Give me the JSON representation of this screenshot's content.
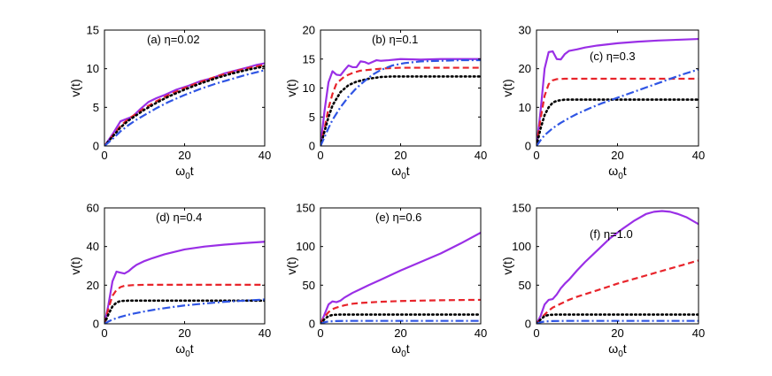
{
  "chart_data": [
    {
      "type": "line",
      "annotation": "(a) η=0.02",
      "xlabel": "ω0t",
      "ylabel": "v(t)",
      "xlim": [
        0,
        40
      ],
      "ylim": [
        0,
        15
      ],
      "xticks": [
        "0",
        "20",
        "40"
      ],
      "yticks": [
        "0",
        "5",
        "10",
        "15"
      ],
      "series": [
        {
          "style": "solid",
          "color": "#9a2fe6",
          "x": [
            0,
            2,
            4,
            5,
            7,
            9,
            11,
            13,
            15,
            18,
            21,
            24,
            27,
            30,
            33,
            36,
            38,
            40
          ],
          "y": [
            0,
            1.5,
            3.2,
            3.4,
            3.8,
            4.8,
            5.7,
            6.2,
            6.6,
            7.3,
            7.8,
            8.4,
            8.8,
            9.4,
            9.8,
            10.2,
            10.5,
            10.7
          ]
        },
        {
          "style": "dashed",
          "color": "#e8242b",
          "x": [
            0,
            2,
            4,
            6,
            8,
            10,
            13,
            16,
            20,
            24,
            28,
            32,
            36,
            40
          ],
          "y": [
            0,
            1.3,
            2.6,
            3.5,
            4.2,
            4.9,
            5.8,
            6.6,
            7.5,
            8.3,
            9,
            9.6,
            10.1,
            10.5
          ]
        },
        {
          "style": "dotted",
          "color": "#000000",
          "x": [
            0,
            2,
            4,
            6,
            8,
            10,
            13,
            16,
            20,
            24,
            28,
            32,
            36,
            40
          ],
          "y": [
            0,
            1.2,
            2.4,
            3.3,
            4,
            4.7,
            5.6,
            6.4,
            7.3,
            8.1,
            8.8,
            9.4,
            9.9,
            10.3
          ]
        },
        {
          "style": "dashdot",
          "color": "#2f55e4",
          "x": [
            0,
            2,
            4,
            6,
            8,
            10,
            13,
            16,
            20,
            24,
            28,
            32,
            36,
            40
          ],
          "y": [
            0,
            0.9,
            1.9,
            2.7,
            3.4,
            4,
            4.9,
            5.7,
            6.6,
            7.4,
            8.1,
            8.7,
            9.3,
            9.8
          ]
        }
      ]
    },
    {
      "type": "line",
      "annotation": "(b) η=0.1",
      "xlabel": "ω0t",
      "ylabel": "v(t)",
      "xlim": [
        0,
        40
      ],
      "ylim": [
        0,
        20
      ],
      "xticks": [
        "0",
        "20",
        "40"
      ],
      "yticks": [
        "0",
        "5",
        "10",
        "15",
        "20"
      ],
      "series": [
        {
          "style": "solid",
          "color": "#9a2fe6",
          "x": [
            0,
            1,
            2,
            3,
            4,
            5,
            6,
            7,
            8,
            9,
            10,
            11,
            12,
            13,
            14,
            15,
            17,
            20,
            25,
            30,
            35,
            40
          ],
          "y": [
            0,
            6,
            11,
            12.9,
            12.3,
            12.2,
            13.1,
            13.9,
            13.6,
            13.6,
            14.6,
            14.5,
            14.2,
            14.5,
            14.8,
            14.7,
            14.8,
            15,
            14.9,
            15,
            15,
            15
          ]
        },
        {
          "style": "dashed",
          "color": "#e8242b",
          "x": [
            0,
            1,
            2,
            3,
            4,
            6,
            8,
            10,
            13,
            16,
            20,
            25,
            30,
            35,
            40
          ],
          "y": [
            0,
            3,
            6.5,
            9,
            10.8,
            12,
            12.6,
            13,
            13.2,
            13.4,
            13.5,
            13.5,
            13.5,
            13.5,
            13.5
          ]
        },
        {
          "style": "dotted",
          "color": "#000000",
          "x": [
            0,
            1,
            2,
            3,
            5,
            7,
            9,
            12,
            15,
            18,
            22,
            26,
            30,
            35,
            40
          ],
          "y": [
            0,
            2.5,
            5,
            7,
            9.3,
            10.5,
            11.1,
            11.6,
            11.9,
            12,
            12,
            12,
            12,
            12,
            12
          ]
        },
        {
          "style": "dashdot",
          "color": "#2f55e4",
          "x": [
            0,
            1,
            2,
            3,
            5,
            7,
            9,
            11,
            13,
            15,
            18,
            21,
            25,
            30,
            35,
            40
          ],
          "y": [
            0,
            1.5,
            3.1,
            4.5,
            6.7,
            8.5,
            10,
            11.2,
            12.3,
            13.1,
            13.9,
            14.3,
            14.6,
            14.7,
            14.8,
            14.8
          ]
        }
      ]
    },
    {
      "type": "line",
      "annotation": "(c) η=0.3",
      "xlabel": "ω0t",
      "ylabel": "v(t)",
      "xlim": [
        0,
        40
      ],
      "ylim": [
        0,
        30
      ],
      "xticks": [
        "0",
        "20",
        "40"
      ],
      "yticks": [
        "0",
        "10",
        "20",
        "30"
      ],
      "series": [
        {
          "style": "solid",
          "color": "#9a2fe6",
          "x": [
            0,
            1,
            2,
            3,
            4,
            5,
            6,
            7,
            8,
            9,
            10,
            12,
            15,
            20,
            25,
            30,
            35,
            40
          ],
          "y": [
            0,
            9,
            20,
            24.3,
            24.5,
            22.5,
            22.4,
            23.8,
            24.6,
            24.8,
            25,
            25.5,
            26,
            26.6,
            27,
            27.3,
            27.5,
            27.7
          ]
        },
        {
          "style": "dashed",
          "color": "#e8242b",
          "x": [
            0,
            1,
            2,
            3,
            4,
            5,
            7,
            10,
            20,
            30,
            40
          ],
          "y": [
            0,
            7,
            13,
            16,
            17,
            17.3,
            17.4,
            17.4,
            17.4,
            17.4,
            17.4
          ]
        },
        {
          "style": "dotted",
          "color": "#000000",
          "x": [
            0,
            1,
            2,
            3,
            4,
            5,
            7,
            10,
            20,
            30,
            40
          ],
          "y": [
            0,
            4.5,
            8,
            10,
            11.2,
            11.7,
            12,
            12,
            12,
            12,
            12
          ]
        },
        {
          "style": "dashdot",
          "color": "#2f55e4",
          "x": [
            0,
            1,
            2,
            4,
            6,
            8,
            10,
            13,
            16,
            20,
            24,
            28,
            32,
            36,
            40
          ],
          "y": [
            0,
            1.5,
            2.8,
            4.6,
            6,
            7.2,
            8.3,
            9.7,
            11,
            12.5,
            14,
            15.5,
            17,
            18.5,
            19.8
          ]
        }
      ]
    },
    {
      "type": "line",
      "annotation": "(d) η=0.4",
      "xlabel": "ω0t",
      "ylabel": "v(t)",
      "xlim": [
        0,
        40
      ],
      "ylim": [
        0,
        60
      ],
      "xticks": [
        "0",
        "20",
        "40"
      ],
      "yticks": [
        "0",
        "20",
        "40",
        "60"
      ],
      "series": [
        {
          "style": "solid",
          "color": "#9a2fe6",
          "x": [
            0,
            1,
            2,
            3,
            4,
            5,
            6,
            7,
            8,
            10,
            12,
            15,
            20,
            25,
            30,
            35,
            40
          ],
          "y": [
            0,
            10,
            22,
            27,
            26.5,
            26,
            27.2,
            29,
            30.5,
            32.5,
            34,
            36,
            38.5,
            40,
            41,
            41.8,
            42.5
          ]
        },
        {
          "style": "dashed",
          "color": "#e8242b",
          "x": [
            0,
            1,
            2,
            3,
            4,
            5,
            7,
            10,
            20,
            30,
            40
          ],
          "y": [
            0,
            8,
            14.5,
            17.5,
            19,
            19.7,
            20,
            20.2,
            20.2,
            20.2,
            20.2
          ]
        },
        {
          "style": "dotted",
          "color": "#000000",
          "x": [
            0,
            1,
            2,
            3,
            4,
            6,
            10,
            20,
            30,
            40
          ],
          "y": [
            0,
            5,
            9,
            11,
            11.8,
            12,
            12,
            12,
            12,
            12
          ]
        },
        {
          "style": "dashdot",
          "color": "#2f55e4",
          "x": [
            0,
            1,
            2,
            4,
            6,
            8,
            10,
            13,
            16,
            20,
            25,
            30,
            35,
            40
          ],
          "y": [
            0,
            1.2,
            2.2,
            3.6,
            4.7,
            5.6,
            6.4,
            7.5,
            8.4,
            9.5,
            10.5,
            11.4,
            12,
            12.6
          ]
        }
      ]
    },
    {
      "type": "line",
      "annotation": "(e) η=0.6",
      "xlabel": "ω0t",
      "ylabel": "v(t)",
      "xlim": [
        0,
        40
      ],
      "ylim": [
        0,
        150
      ],
      "xticks": [
        "0",
        "20",
        "40"
      ],
      "yticks": [
        "0",
        "50",
        "100",
        "150"
      ],
      "series": [
        {
          "style": "solid",
          "color": "#9a2fe6",
          "x": [
            0,
            1,
            2,
            3,
            4,
            5,
            6,
            7,
            8,
            10,
            12,
            15,
            20,
            25,
            30,
            35,
            40
          ],
          "y": [
            0,
            12,
            25,
            29,
            28,
            30,
            34,
            37,
            40,
            45,
            50,
            57,
            69,
            80,
            91,
            104,
            118
          ]
        },
        {
          "style": "dashed",
          "color": "#e8242b",
          "x": [
            0,
            1,
            2,
            3,
            4,
            6,
            8,
            10,
            15,
            20,
            25,
            30,
            35,
            40
          ],
          "y": [
            0,
            9,
            15,
            19,
            21,
            24,
            26,
            27,
            28.5,
            29.5,
            30,
            30.5,
            30.8,
            31
          ]
        },
        {
          "style": "dotted",
          "color": "#000000",
          "x": [
            0,
            1,
            2,
            3,
            5,
            10,
            20,
            30,
            40
          ],
          "y": [
            0,
            6,
            10,
            11.5,
            12,
            12,
            12,
            12,
            12
          ]
        },
        {
          "style": "dashdot",
          "color": "#2f55e4",
          "x": [
            0,
            1,
            2,
            4,
            8,
            12,
            20,
            30,
            40
          ],
          "y": [
            0,
            2,
            3,
            3.6,
            3.8,
            3.8,
            3.8,
            3.8,
            3.8
          ]
        }
      ]
    },
    {
      "type": "line",
      "annotation": "(f) η=1.0",
      "xlabel": "ω0t",
      "ylabel": "v(t)",
      "xlim": [
        0,
        40
      ],
      "ylim": [
        0,
        150
      ],
      "xticks": [
        "0",
        "20",
        "40"
      ],
      "yticks": [
        "0",
        "50",
        "100",
        "150"
      ],
      "series": [
        {
          "style": "solid",
          "color": "#9a2fe6",
          "x": [
            0,
            1,
            2,
            3,
            4,
            5,
            6,
            7,
            8,
            10,
            12,
            15,
            18,
            21,
            24,
            27,
            29,
            31,
            33,
            35,
            37,
            40
          ],
          "y": [
            0,
            10,
            25,
            31,
            32,
            38,
            46,
            52,
            57,
            69,
            80,
            95,
            110,
            122,
            133,
            142,
            145,
            146,
            145,
            142,
            138,
            129
          ]
        },
        {
          "style": "dashed",
          "color": "#e8242b",
          "x": [
            0,
            1,
            2,
            3,
            4,
            6,
            8,
            10,
            13,
            16,
            20,
            24,
            28,
            32,
            36,
            40
          ],
          "y": [
            0,
            6,
            12,
            17,
            21,
            26,
            31,
            35,
            40,
            45,
            52,
            58,
            64,
            70,
            76,
            82
          ]
        },
        {
          "style": "dotted",
          "color": "#000000",
          "x": [
            0,
            1,
            2,
            3,
            5,
            10,
            20,
            30,
            40
          ],
          "y": [
            0,
            5.5,
            10,
            11.5,
            12,
            12,
            12,
            12,
            12
          ]
        },
        {
          "style": "dashdot",
          "color": "#2f55e4",
          "x": [
            0,
            1,
            2,
            4,
            8,
            12,
            20,
            30,
            40
          ],
          "y": [
            0,
            2,
            3,
            3.6,
            3.8,
            3.8,
            3.8,
            3.8,
            3.8
          ]
        }
      ]
    }
  ]
}
